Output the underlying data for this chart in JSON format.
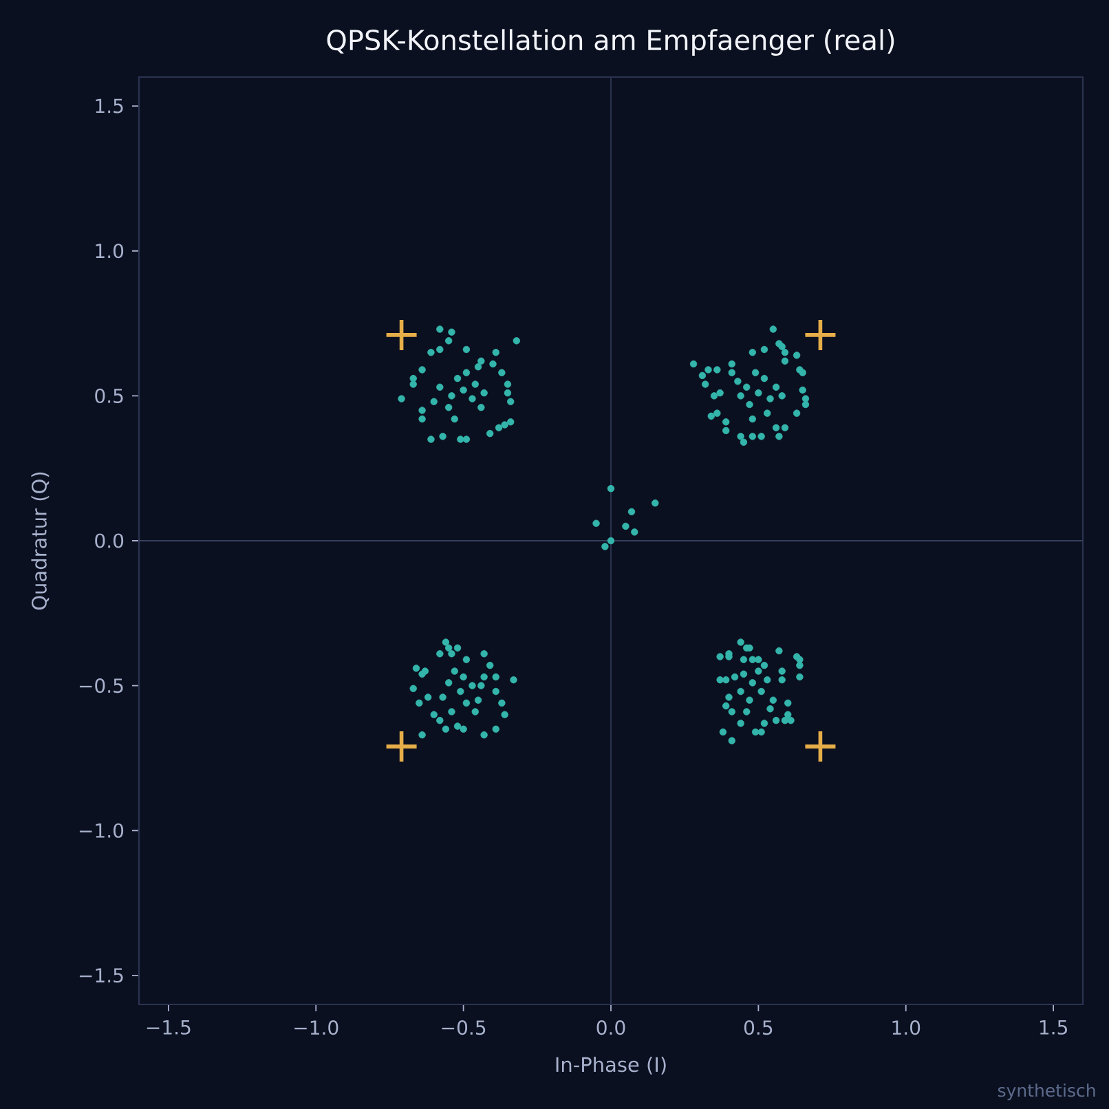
{
  "chart_data": {
    "type": "scatter",
    "title": "QPSK-Konstellation am Empfaenger (real)",
    "xlabel": "In-Phase (I)",
    "ylabel": "Quadratur (Q)",
    "annotations": [
      "synthetisch"
    ],
    "xlim": [
      -1.6,
      1.6
    ],
    "ylim": [
      -1.6,
      1.6
    ],
    "xticks": [
      {
        "value": -1.5,
        "label": "−1.5"
      },
      {
        "value": -1.0,
        "label": "−1.0"
      },
      {
        "value": -0.5,
        "label": "−0.5"
      },
      {
        "value": 0,
        "label": "0.0"
      },
      0.5,
      {
        "value": 1.0,
        "label": "1.0"
      },
      1.5
    ],
    "yticks": [
      {
        "value": -1.5,
        "label": "−1.5"
      },
      {
        "value": -1.0,
        "label": "−1.0"
      },
      {
        "value": -0.5,
        "label": "−0.5"
      },
      {
        "value": 0,
        "label": "0.0"
      },
      0.5,
      {
        "value": 1.0,
        "label": "1.0"
      },
      1.5
    ],
    "ref_lines": [
      {
        "axis": "x",
        "value": 0,
        "color": "#2b3450"
      },
      {
        "axis": "y",
        "value": 0,
        "color": "#363f5c"
      }
    ],
    "series": [
      {
        "color": "#34b5ab",
        "marker": "circle",
        "x": [
          -0.58,
          -0.54,
          -0.55,
          -0.32,
          -0.71,
          -0.61,
          -0.67,
          -0.67,
          -0.34,
          -0.34,
          -0.37,
          -0.39,
          -0.4,
          -0.49,
          -0.58,
          -0.61,
          -0.64,
          -0.64,
          -0.64,
          -0.57,
          -0.51,
          -0.49,
          -0.41,
          -0.38,
          -0.36,
          -0.35,
          -0.35,
          -0.44,
          -0.45,
          -0.5,
          -0.46,
          -0.54,
          -0.52,
          -0.47,
          -0.55,
          -0.43,
          -0.58,
          -0.49,
          -0.44,
          -0.53,
          -0.6,
          0.55,
          0.28,
          0.31,
          0.33,
          0.36,
          0.32,
          0.35,
          0.37,
          0.34,
          0.36,
          0.39,
          0.39,
          0.44,
          0.45,
          0.48,
          0.51,
          0.57,
          0.56,
          0.59,
          0.63,
          0.66,
          0.66,
          0.65,
          0.65,
          0.64,
          0.63,
          0.59,
          0.59,
          0.58,
          0.57,
          0.52,
          0.48,
          0.41,
          0.41,
          0.5,
          0.46,
          0.54,
          0.52,
          0.47,
          0.44,
          0.56,
          0.49,
          0.43,
          0.53,
          0.58,
          0.48,
          -0.56,
          -0.52,
          -0.55,
          -0.58,
          -0.54,
          -0.66,
          -0.64,
          -0.63,
          -0.67,
          -0.65,
          -0.62,
          -0.64,
          -0.56,
          -0.52,
          -0.5,
          -0.43,
          -0.39,
          -0.36,
          -0.37,
          -0.39,
          -0.33,
          -0.39,
          -0.43,
          -0.41,
          -0.43,
          -0.49,
          -0.58,
          -0.6,
          -0.51,
          -0.47,
          -0.55,
          -0.49,
          -0.53,
          -0.45,
          -0.57,
          -0.5,
          -0.46,
          -0.54,
          -0.44,
          0.44,
          0.47,
          0.46,
          0.37,
          0.4,
          0.4,
          0.45,
          0.57,
          0.63,
          0.64,
          0.64,
          0.58,
          0.64,
          0.37,
          0.39,
          0.4,
          0.39,
          0.41,
          0.38,
          0.41,
          0.44,
          0.49,
          0.51,
          0.52,
          0.56,
          0.59,
          0.61,
          0.6,
          0.6,
          0.58,
          0.52,
          0.5,
          0.48,
          0.48,
          0.45,
          0.51,
          0.47,
          0.53,
          0.44,
          0.5,
          0.55,
          0.46,
          0.42,
          0.54,
          0.0,
          0.15,
          0.07,
          -0.05,
          0.05,
          0.08,
          0.0,
          -0.02
        ],
        "values": [
          0.73,
          0.72,
          0.69,
          0.69,
          0.49,
          0.35,
          0.56,
          0.54,
          0.41,
          0.48,
          0.58,
          0.65,
          0.61,
          0.66,
          0.66,
          0.65,
          0.59,
          0.45,
          0.42,
          0.36,
          0.35,
          0.35,
          0.37,
          0.39,
          0.4,
          0.51,
          0.54,
          0.62,
          0.6,
          0.52,
          0.54,
          0.5,
          0.56,
          0.49,
          0.46,
          0.51,
          0.53,
          0.58,
          0.46,
          0.42,
          0.48,
          0.73,
          0.61,
          0.57,
          0.59,
          0.59,
          0.54,
          0.5,
          0.51,
          0.43,
          0.44,
          0.41,
          0.38,
          0.36,
          0.34,
          0.36,
          0.36,
          0.36,
          0.39,
          0.39,
          0.44,
          0.47,
          0.49,
          0.52,
          0.58,
          0.59,
          0.64,
          0.65,
          0.62,
          0.67,
          0.68,
          0.66,
          0.65,
          0.61,
          0.58,
          0.51,
          0.53,
          0.49,
          0.56,
          0.47,
          0.5,
          0.53,
          0.58,
          0.55,
          0.44,
          0.5,
          0.42,
          -0.35,
          -0.37,
          -0.37,
          -0.39,
          -0.39,
          -0.44,
          -0.46,
          -0.45,
          -0.51,
          -0.56,
          -0.54,
          -0.67,
          -0.65,
          -0.64,
          -0.65,
          -0.67,
          -0.65,
          -0.6,
          -0.56,
          -0.52,
          -0.48,
          -0.47,
          -0.47,
          -0.43,
          -0.39,
          -0.41,
          -0.62,
          -0.6,
          -0.52,
          -0.5,
          -0.49,
          -0.56,
          -0.45,
          -0.55,
          -0.54,
          -0.47,
          -0.59,
          -0.59,
          -0.5,
          -0.35,
          -0.37,
          -0.37,
          -0.4,
          -0.39,
          -0.4,
          -0.41,
          -0.38,
          -0.4,
          -0.41,
          -0.43,
          -0.45,
          -0.47,
          -0.48,
          -0.48,
          -0.54,
          -0.57,
          -0.59,
          -0.66,
          -0.69,
          -0.63,
          -0.66,
          -0.66,
          -0.63,
          -0.62,
          -0.62,
          -0.62,
          -0.6,
          -0.56,
          -0.48,
          -0.43,
          -0.41,
          -0.41,
          -0.49,
          -0.46,
          -0.52,
          -0.55,
          -0.48,
          -0.52,
          -0.45,
          -0.55,
          -0.59,
          -0.47,
          -0.58,
          0.18,
          0.13,
          0.1,
          0.06,
          0.05,
          0.03,
          0.0,
          -0.02
        ]
      },
      {
        "color": "#e6ae48",
        "marker": "cross",
        "x": [
          0.71,
          -0.71,
          -0.71,
          0.71
        ],
        "values": [
          0.71,
          0.71,
          -0.71,
          -0.71
        ]
      }
    ]
  }
}
